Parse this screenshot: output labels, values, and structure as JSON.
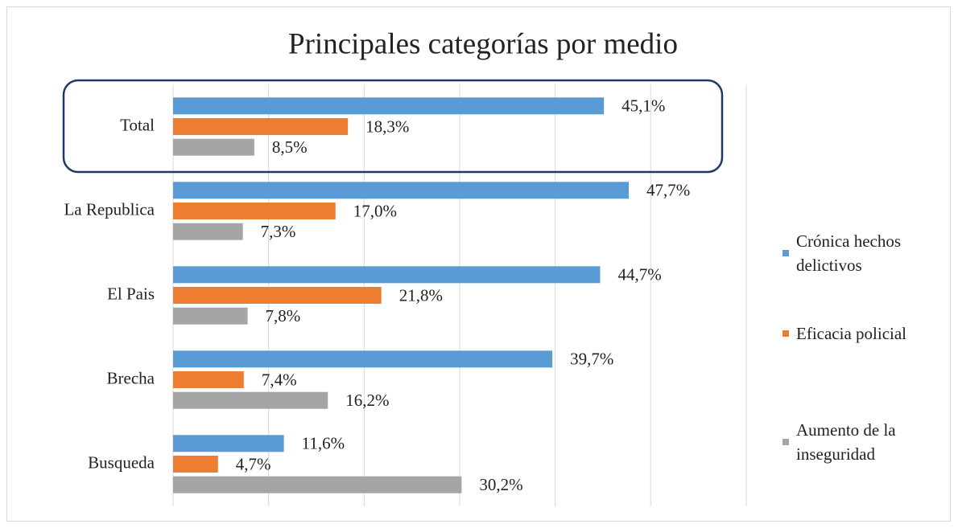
{
  "chart_data": {
    "type": "bar",
    "orientation": "horizontal",
    "title": "Principales categorías por medio",
    "categories": [
      "Total",
      "La Republica",
      "El Pais",
      "Brecha",
      "Busqueda"
    ],
    "series": [
      {
        "name": "Crónica hechos delictivos",
        "color": "#5b9bd5",
        "values": [
          45.1,
          47.7,
          44.7,
          39.7,
          11.6
        ],
        "value_labels": [
          "45,1%",
          "47,7%",
          "44,7%",
          "39,7%",
          "11,6%"
        ]
      },
      {
        "name": "Eficacia policial",
        "color": "#ed7d31",
        "values": [
          18.3,
          17.0,
          21.8,
          7.4,
          4.7
        ],
        "value_labels": [
          "18,3%",
          "17,0%",
          "21,8%",
          "7,4%",
          "4,7%"
        ]
      },
      {
        "name": "Aumento de la inseguridad",
        "color": "#a5a5a5",
        "values": [
          8.5,
          7.3,
          7.8,
          16.2,
          30.2
        ],
        "value_labels": [
          "8,5%",
          "7,3%",
          "7,8%",
          "16,2%",
          "30,2%"
        ]
      }
    ],
    "xlim": [
      0,
      60
    ],
    "xticks": [
      0,
      10,
      20,
      30,
      40,
      50,
      60
    ],
    "grid": true,
    "legend": "right"
  }
}
